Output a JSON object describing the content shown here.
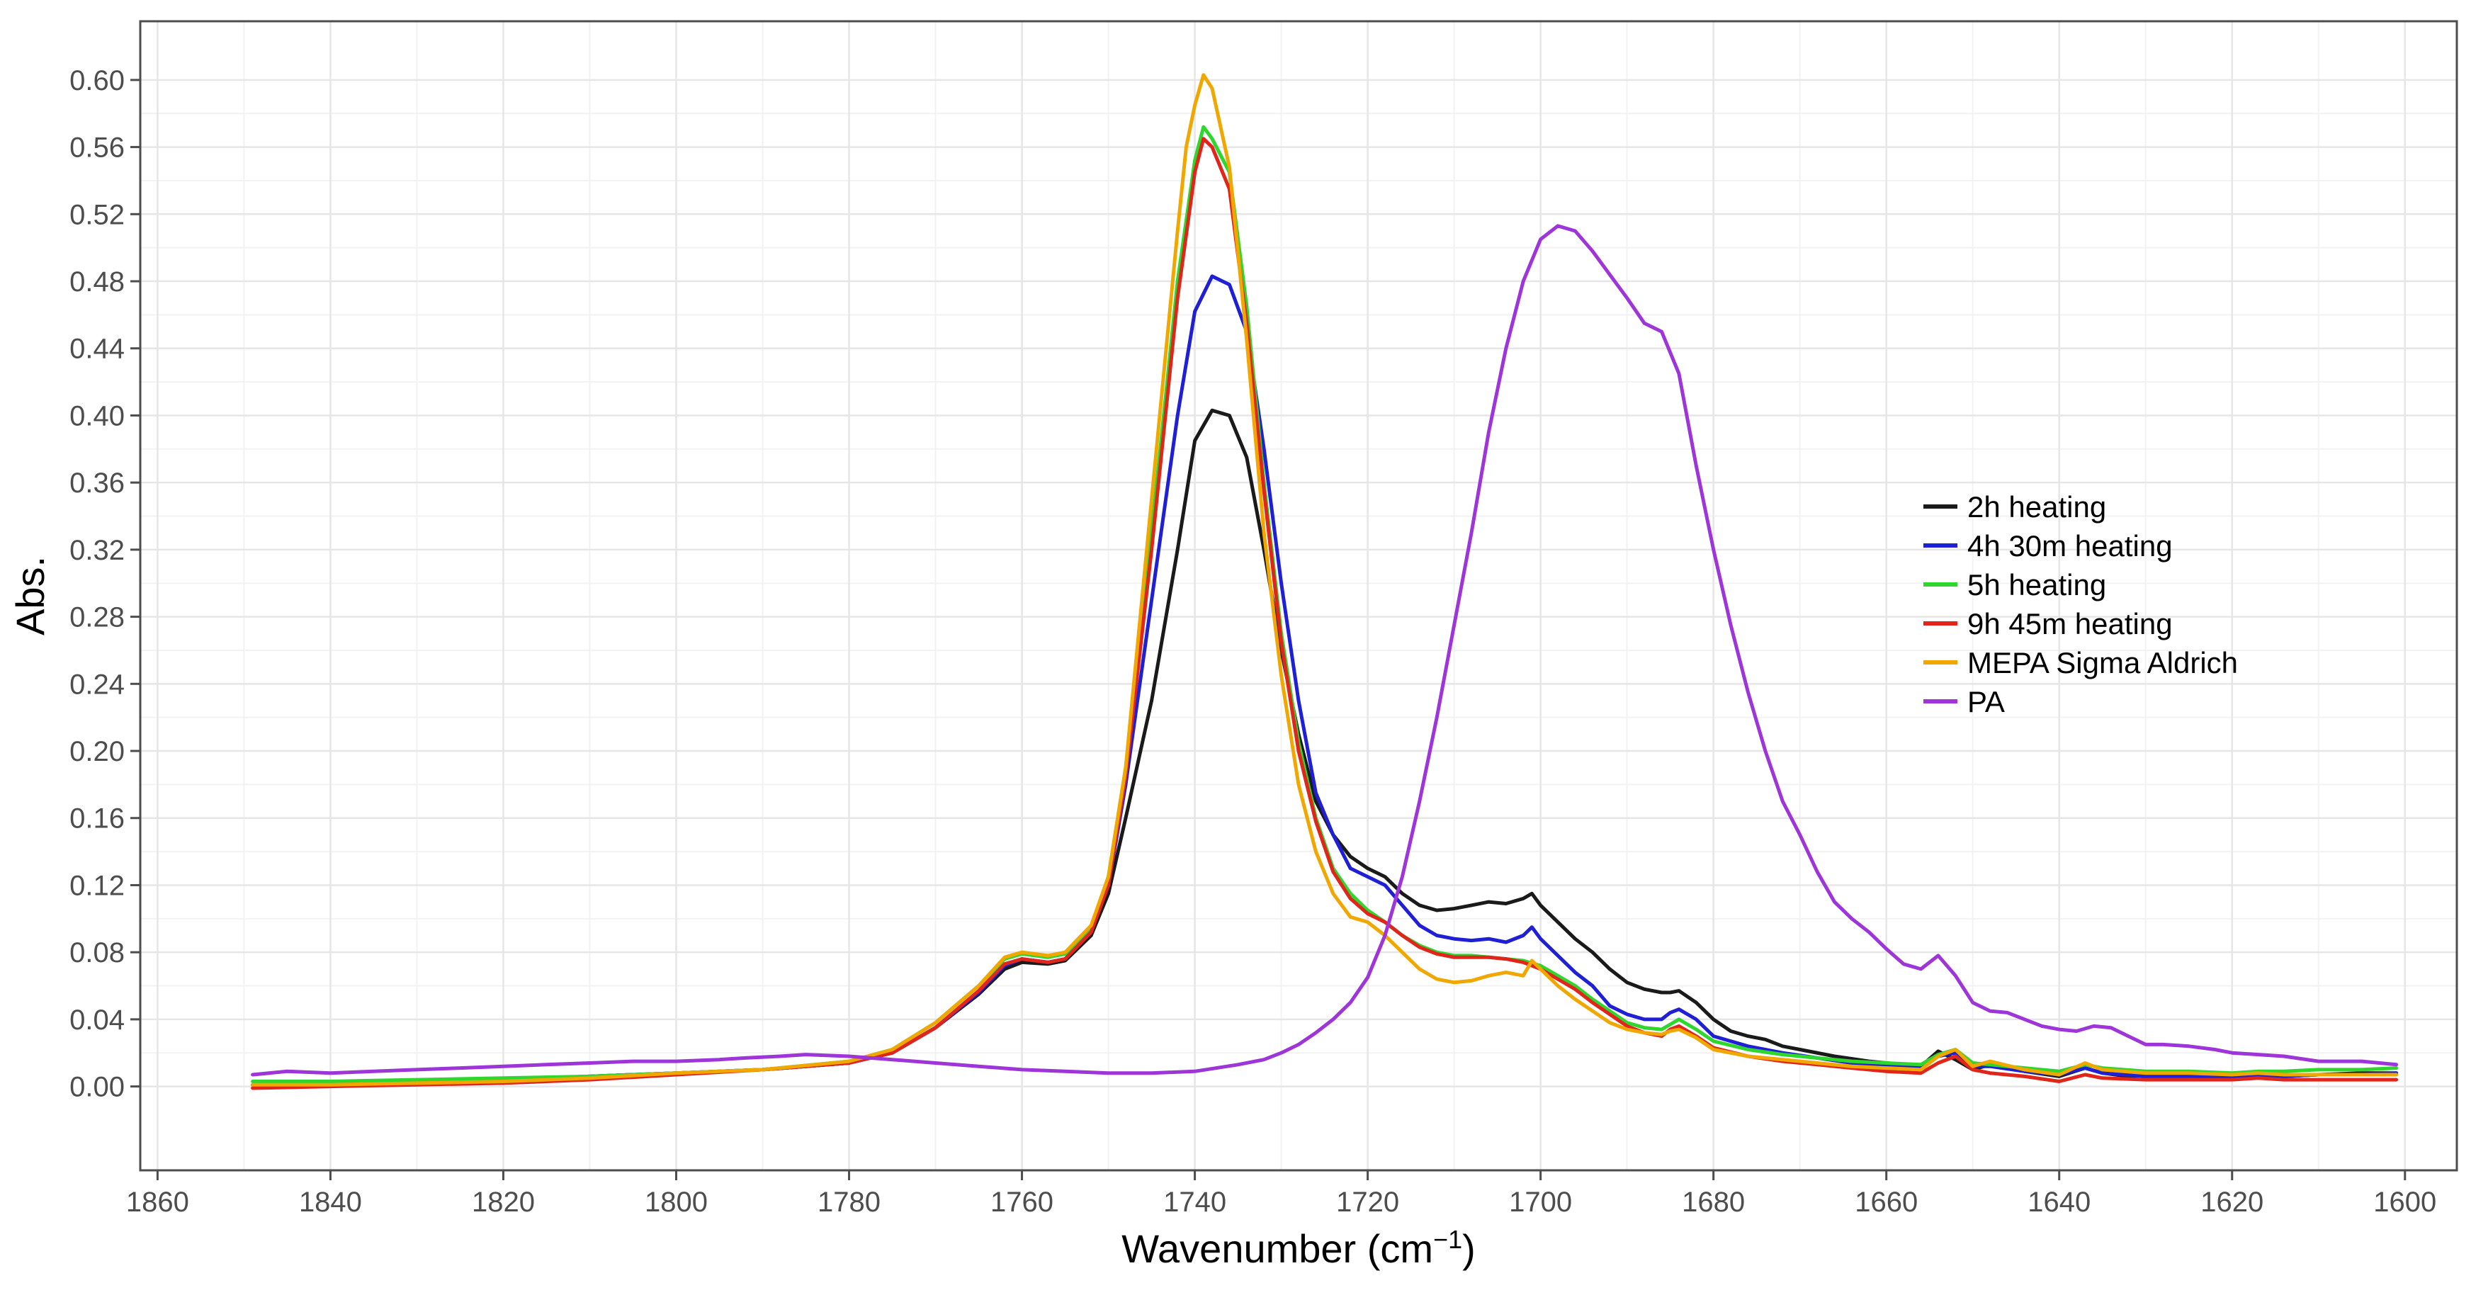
{
  "chart_data": {
    "type": "line",
    "xlabel": "Wavenumber (cm",
    "xlabel_sup": "−1",
    "xlabel_close": ")",
    "ylabel": "Abs.",
    "xlim": [
      1862,
      1594
    ],
    "ylim": [
      -0.05,
      0.635
    ],
    "x_reversed": true,
    "grid": true,
    "legend_position": "right",
    "x_ticks": [
      1860,
      1840,
      1820,
      1800,
      1780,
      1760,
      1740,
      1720,
      1700,
      1680,
      1660,
      1640,
      1620,
      1600
    ],
    "y_ticks": [
      0.0,
      0.04,
      0.08,
      0.12,
      0.16,
      0.2,
      0.24,
      0.28,
      0.32,
      0.36,
      0.4,
      0.44,
      0.48,
      0.52,
      0.56,
      0.6
    ],
    "y_tick_labels": [
      "0.00",
      "0.04",
      "0.08",
      "0.12",
      "0.16",
      "0.20",
      "0.24",
      "0.28",
      "0.32",
      "0.36",
      "0.40",
      "0.44",
      "0.48",
      "0.52",
      "0.56",
      "0.60"
    ],
    "series": [
      {
        "name": "2h heating",
        "color": "#1a1a1a",
        "x": [
          1849,
          1840,
          1830,
          1820,
          1810,
          1800,
          1790,
          1780,
          1775,
          1770,
          1765,
          1762,
          1760,
          1757,
          1755,
          1752,
          1750,
          1748,
          1745,
          1742,
          1740,
          1738,
          1736,
          1734,
          1732,
          1730,
          1728,
          1726,
          1724,
          1722,
          1720,
          1718,
          1716,
          1714,
          1712,
          1710,
          1708,
          1706,
          1704,
          1702,
          1701,
          1700,
          1698,
          1696,
          1694,
          1692,
          1690,
          1688,
          1686,
          1685,
          1684,
          1682,
          1680,
          1678,
          1676,
          1674,
          1672,
          1670,
          1666,
          1662,
          1658,
          1656,
          1654,
          1652,
          1650,
          1648,
          1646,
          1644,
          1640,
          1637,
          1635,
          1632,
          1628,
          1624,
          1620,
          1617,
          1614,
          1610,
          1605,
          1601
        ],
        "y": [
          0.001,
          0.002,
          0.003,
          0.004,
          0.006,
          0.008,
          0.01,
          0.014,
          0.02,
          0.035,
          0.055,
          0.07,
          0.074,
          0.073,
          0.075,
          0.09,
          0.115,
          0.16,
          0.23,
          0.32,
          0.385,
          0.403,
          0.4,
          0.375,
          0.32,
          0.26,
          0.21,
          0.17,
          0.15,
          0.137,
          0.13,
          0.125,
          0.115,
          0.108,
          0.105,
          0.106,
          0.108,
          0.11,
          0.109,
          0.112,
          0.115,
          0.108,
          0.098,
          0.088,
          0.08,
          0.07,
          0.062,
          0.058,
          0.056,
          0.056,
          0.057,
          0.05,
          0.04,
          0.033,
          0.03,
          0.028,
          0.024,
          0.022,
          0.018,
          0.015,
          0.013,
          0.012,
          0.021,
          0.016,
          0.01,
          0.013,
          0.012,
          0.009,
          0.006,
          0.011,
          0.008,
          0.006,
          0.007,
          0.006,
          0.006,
          0.007,
          0.006,
          0.007,
          0.008,
          0.008
        ]
      },
      {
        "name": "4h 30m heating",
        "color": "#1f1fd6",
        "x": [
          1849,
          1840,
          1830,
          1820,
          1810,
          1800,
          1790,
          1780,
          1775,
          1770,
          1765,
          1762,
          1760,
          1757,
          1755,
          1752,
          1750,
          1748,
          1745,
          1742,
          1740,
          1738,
          1736,
          1734,
          1732,
          1730,
          1728,
          1726,
          1724,
          1722,
          1720,
          1718,
          1716,
          1714,
          1712,
          1710,
          1708,
          1706,
          1704,
          1702,
          1701,
          1700,
          1698,
          1696,
          1694,
          1692,
          1690,
          1688,
          1686,
          1685,
          1684,
          1682,
          1680,
          1676,
          1672,
          1668,
          1664,
          1660,
          1656,
          1654,
          1652,
          1650,
          1648,
          1644,
          1640,
          1637,
          1635,
          1630,
          1625,
          1620,
          1617,
          1614,
          1610,
          1605,
          1601
        ],
        "y": [
          0.001,
          0.002,
          0.003,
          0.004,
          0.006,
          0.008,
          0.01,
          0.014,
          0.02,
          0.035,
          0.056,
          0.072,
          0.076,
          0.074,
          0.076,
          0.092,
          0.12,
          0.18,
          0.29,
          0.4,
          0.462,
          0.483,
          0.478,
          0.45,
          0.38,
          0.3,
          0.23,
          0.175,
          0.15,
          0.13,
          0.125,
          0.12,
          0.108,
          0.096,
          0.09,
          0.088,
          0.087,
          0.088,
          0.086,
          0.09,
          0.095,
          0.088,
          0.078,
          0.068,
          0.06,
          0.048,
          0.043,
          0.04,
          0.04,
          0.044,
          0.046,
          0.04,
          0.03,
          0.024,
          0.02,
          0.017,
          0.014,
          0.012,
          0.011,
          0.018,
          0.02,
          0.012,
          0.012,
          0.009,
          0.007,
          0.011,
          0.008,
          0.006,
          0.006,
          0.006,
          0.007,
          0.006,
          0.007,
          0.007,
          0.008
        ]
      },
      {
        "name": "5h heating",
        "color": "#2ed62e",
        "x": [
          1849,
          1840,
          1830,
          1820,
          1810,
          1800,
          1790,
          1780,
          1775,
          1770,
          1765,
          1762,
          1760,
          1757,
          1755,
          1752,
          1750,
          1748,
          1745,
          1742,
          1740,
          1739,
          1738,
          1736,
          1734,
          1732,
          1730,
          1728,
          1726,
          1724,
          1722,
          1720,
          1718,
          1716,
          1714,
          1712,
          1710,
          1708,
          1706,
          1704,
          1702,
          1700,
          1698,
          1696,
          1694,
          1692,
          1690,
          1688,
          1686,
          1685,
          1684,
          1682,
          1680,
          1676,
          1672,
          1668,
          1664,
          1660,
          1656,
          1654,
          1652,
          1650,
          1648,
          1644,
          1640,
          1637,
          1635,
          1630,
          1625,
          1620,
          1617,
          1614,
          1610,
          1605,
          1601
        ],
        "y": [
          0.003,
          0.003,
          0.004,
          0.005,
          0.006,
          0.008,
          0.01,
          0.015,
          0.022,
          0.038,
          0.06,
          0.076,
          0.079,
          0.077,
          0.079,
          0.095,
          0.125,
          0.19,
          0.33,
          0.48,
          0.552,
          0.572,
          0.565,
          0.545,
          0.465,
          0.36,
          0.27,
          0.205,
          0.16,
          0.13,
          0.115,
          0.105,
          0.098,
          0.09,
          0.084,
          0.08,
          0.078,
          0.078,
          0.077,
          0.076,
          0.075,
          0.072,
          0.066,
          0.06,
          0.052,
          0.045,
          0.038,
          0.035,
          0.034,
          0.037,
          0.04,
          0.034,
          0.027,
          0.022,
          0.019,
          0.017,
          0.015,
          0.014,
          0.013,
          0.019,
          0.022,
          0.014,
          0.013,
          0.011,
          0.009,
          0.013,
          0.011,
          0.009,
          0.009,
          0.008,
          0.009,
          0.009,
          0.01,
          0.01,
          0.011
        ]
      },
      {
        "name": "9h 45m heating",
        "color": "#e0251b",
        "x": [
          1849,
          1840,
          1830,
          1820,
          1810,
          1800,
          1790,
          1780,
          1775,
          1770,
          1765,
          1762,
          1760,
          1757,
          1755,
          1752,
          1750,
          1748,
          1745,
          1742,
          1740,
          1739,
          1738,
          1736,
          1734,
          1732,
          1730,
          1728,
          1726,
          1724,
          1722,
          1720,
          1718,
          1716,
          1714,
          1712,
          1710,
          1708,
          1706,
          1704,
          1702,
          1700,
          1698,
          1696,
          1694,
          1692,
          1690,
          1688,
          1686,
          1685,
          1684,
          1682,
          1680,
          1676,
          1672,
          1668,
          1664,
          1660,
          1656,
          1654,
          1652,
          1650,
          1648,
          1644,
          1640,
          1637,
          1635,
          1630,
          1625,
          1620,
          1617,
          1614,
          1610,
          1605,
          1601
        ],
        "y": [
          -0.001,
          0.0,
          0.001,
          0.002,
          0.004,
          0.007,
          0.01,
          0.014,
          0.02,
          0.035,
          0.057,
          0.073,
          0.076,
          0.074,
          0.076,
          0.092,
          0.12,
          0.185,
          0.32,
          0.47,
          0.545,
          0.565,
          0.56,
          0.535,
          0.455,
          0.355,
          0.265,
          0.2,
          0.158,
          0.128,
          0.112,
          0.103,
          0.098,
          0.09,
          0.083,
          0.079,
          0.077,
          0.077,
          0.077,
          0.076,
          0.074,
          0.07,
          0.064,
          0.058,
          0.05,
          0.043,
          0.036,
          0.032,
          0.03,
          0.034,
          0.036,
          0.03,
          0.023,
          0.018,
          0.015,
          0.013,
          0.011,
          0.009,
          0.008,
          0.014,
          0.018,
          0.01,
          0.008,
          0.006,
          0.003,
          0.007,
          0.005,
          0.004,
          0.004,
          0.004,
          0.005,
          0.004,
          0.004,
          0.004,
          0.004
        ]
      },
      {
        "name": "MEPA Sigma Aldrich",
        "color": "#f0a800",
        "x": [
          1849,
          1840,
          1830,
          1820,
          1810,
          1800,
          1790,
          1780,
          1775,
          1770,
          1765,
          1762,
          1760,
          1757,
          1755,
          1752,
          1750,
          1748,
          1745,
          1742,
          1741,
          1740,
          1739,
          1738,
          1736,
          1734,
          1732,
          1730,
          1728,
          1726,
          1724,
          1722,
          1720,
          1718,
          1716,
          1714,
          1712,
          1710,
          1708,
          1706,
          1704,
          1702,
          1701,
          1700,
          1698,
          1696,
          1694,
          1692,
          1690,
          1688,
          1686,
          1685,
          1684,
          1682,
          1680,
          1676,
          1672,
          1668,
          1664,
          1660,
          1656,
          1654,
          1652,
          1650,
          1648,
          1644,
          1640,
          1637,
          1635,
          1630,
          1625,
          1620,
          1617,
          1614,
          1610,
          1605,
          1601
        ],
        "y": [
          0.001,
          0.001,
          0.002,
          0.003,
          0.005,
          0.008,
          0.01,
          0.015,
          0.022,
          0.038,
          0.06,
          0.077,
          0.08,
          0.078,
          0.08,
          0.096,
          0.125,
          0.19,
          0.35,
          0.51,
          0.56,
          0.585,
          0.603,
          0.595,
          0.548,
          0.445,
          0.33,
          0.245,
          0.18,
          0.14,
          0.115,
          0.101,
          0.098,
          0.09,
          0.08,
          0.07,
          0.064,
          0.062,
          0.063,
          0.066,
          0.068,
          0.066,
          0.075,
          0.07,
          0.06,
          0.052,
          0.045,
          0.038,
          0.034,
          0.032,
          0.031,
          0.033,
          0.034,
          0.029,
          0.022,
          0.018,
          0.016,
          0.014,
          0.012,
          0.011,
          0.01,
          0.018,
          0.022,
          0.012,
          0.015,
          0.01,
          0.007,
          0.014,
          0.01,
          0.008,
          0.008,
          0.007,
          0.008,
          0.007,
          0.007,
          0.007,
          0.007
        ]
      },
      {
        "name": "PA",
        "color": "#9d35d9",
        "x": [
          1849,
          1845,
          1840,
          1835,
          1830,
          1825,
          1820,
          1815,
          1810,
          1805,
          1800,
          1795,
          1792,
          1788,
          1785,
          1780,
          1775,
          1770,
          1765,
          1760,
          1755,
          1750,
          1745,
          1740,
          1735,
          1732,
          1730,
          1728,
          1726,
          1724,
          1722,
          1720,
          1718,
          1716,
          1714,
          1712,
          1710,
          1708,
          1706,
          1704,
          1702,
          1700,
          1698,
          1696,
          1694,
          1692,
          1690,
          1688,
          1686,
          1684,
          1682,
          1680,
          1678,
          1676,
          1674,
          1672,
          1670,
          1668,
          1666,
          1664,
          1662,
          1660,
          1658,
          1656,
          1654,
          1652,
          1650,
          1648,
          1646,
          1644,
          1642,
          1640,
          1638,
          1636,
          1634,
          1632,
          1630,
          1628,
          1625,
          1622,
          1620,
          1617,
          1614,
          1610,
          1605,
          1601
        ],
        "y": [
          0.007,
          0.009,
          0.008,
          0.009,
          0.01,
          0.011,
          0.012,
          0.013,
          0.014,
          0.015,
          0.015,
          0.016,
          0.017,
          0.018,
          0.019,
          0.018,
          0.016,
          0.014,
          0.012,
          0.01,
          0.009,
          0.008,
          0.008,
          0.009,
          0.013,
          0.016,
          0.02,
          0.025,
          0.032,
          0.04,
          0.05,
          0.065,
          0.09,
          0.125,
          0.17,
          0.22,
          0.275,
          0.33,
          0.39,
          0.44,
          0.48,
          0.505,
          0.513,
          0.51,
          0.498,
          0.484,
          0.47,
          0.455,
          0.45,
          0.425,
          0.37,
          0.32,
          0.275,
          0.235,
          0.2,
          0.17,
          0.15,
          0.128,
          0.11,
          0.1,
          0.092,
          0.082,
          0.073,
          0.07,
          0.078,
          0.066,
          0.05,
          0.045,
          0.044,
          0.04,
          0.036,
          0.034,
          0.033,
          0.036,
          0.035,
          0.03,
          0.025,
          0.025,
          0.024,
          0.022,
          0.02,
          0.019,
          0.018,
          0.015,
          0.015,
          0.013
        ]
      }
    ]
  }
}
